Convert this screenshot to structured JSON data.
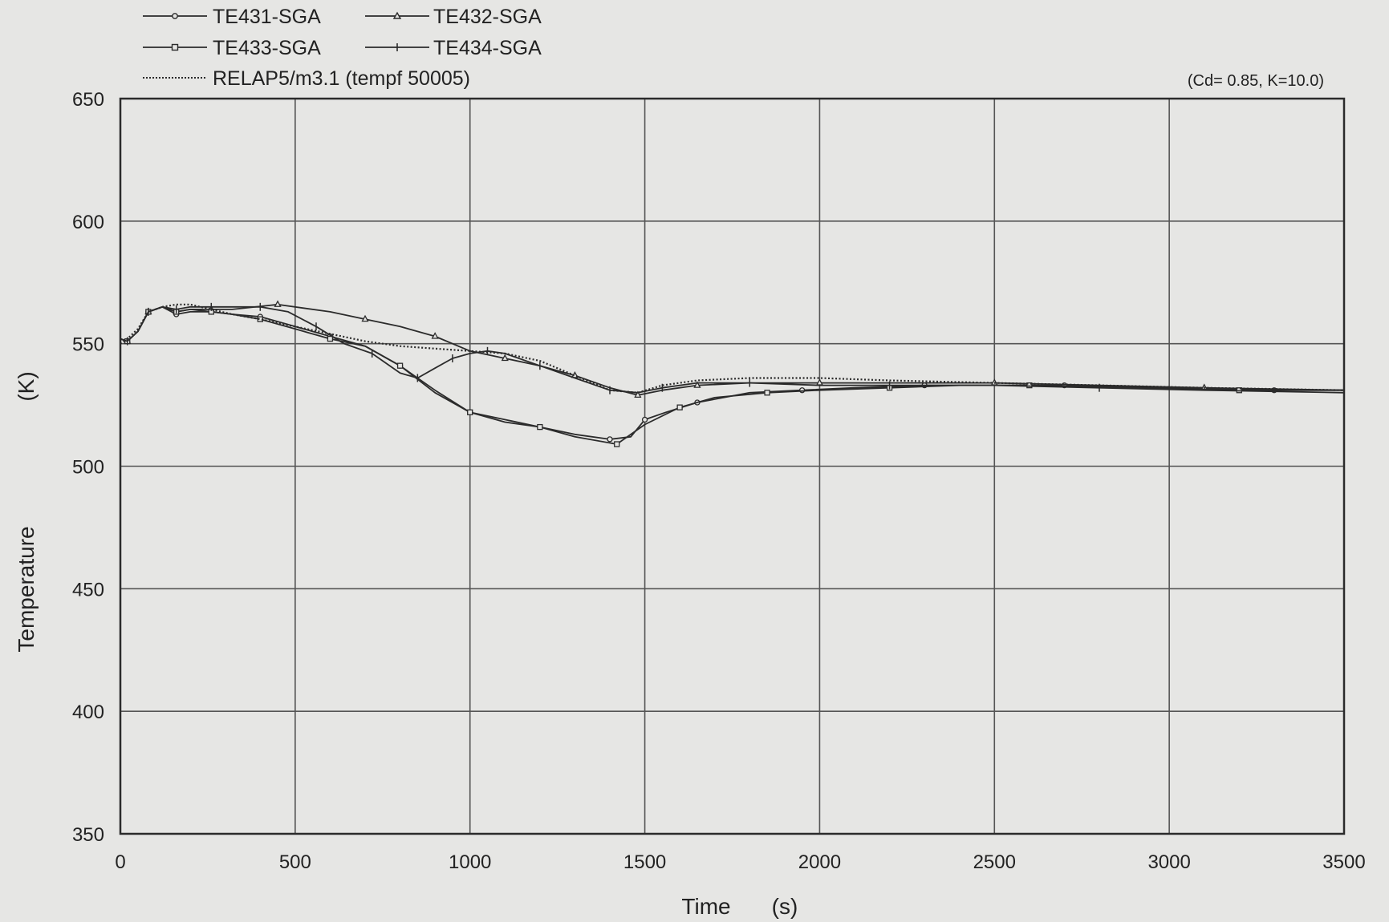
{
  "chart_data": {
    "type": "line",
    "annotation": "(Cd= 0.85, K=10.0)",
    "xlabel": "Time",
    "xlabel_unit": "(s)",
    "ylabel": "Temperature",
    "ylabel_unit": "(K)",
    "xlim": [
      0,
      3500
    ],
    "ylim": [
      350,
      650
    ],
    "x_ticks": [
      "0",
      "500",
      "1000",
      "1500",
      "2000",
      "2500",
      "3000",
      "3500"
    ],
    "y_ticks": [
      "650",
      "600",
      "550",
      "500",
      "450",
      "400",
      "350"
    ],
    "grid": true,
    "legend_position": "top-left, above plot",
    "colors": {
      "line": "#2b2b2b",
      "grid": "#555555",
      "background": "#e6e6e4"
    },
    "series": [
      {
        "name": "TE431-SGA",
        "marker": "circle",
        "dash": "solid",
        "x": [
          0,
          20,
          50,
          80,
          120,
          160,
          200,
          260,
          320,
          400,
          500,
          600,
          700,
          800,
          900,
          1000,
          1100,
          1200,
          1300,
          1400,
          1460,
          1500,
          1560,
          1650,
          1800,
          1950,
          2100,
          2300,
          2500,
          2700,
          3000,
          3300,
          3500
        ],
        "y": [
          552,
          551,
          555,
          563,
          565,
          562,
          563,
          563,
          562,
          561,
          557,
          553,
          549,
          541,
          531,
          522,
          519,
          516,
          513,
          511,
          512,
          519,
          522,
          526,
          530,
          531,
          532,
          533,
          533,
          533,
          532,
          531,
          531
        ]
      },
      {
        "name": "TE432-SGA",
        "marker": "triangle",
        "dash": "solid",
        "x": [
          0,
          20,
          50,
          80,
          120,
          160,
          200,
          260,
          320,
          450,
          600,
          700,
          800,
          900,
          1000,
          1100,
          1200,
          1300,
          1400,
          1480,
          1550,
          1650,
          1800,
          2000,
          2200,
          2500,
          2800,
          3100,
          3500
        ],
        "y": [
          552,
          551,
          555,
          563,
          565,
          563,
          564,
          564,
          564,
          566,
          563,
          560,
          557,
          553,
          547,
          544,
          541,
          537,
          532,
          529,
          531,
          533,
          534,
          534,
          534,
          534,
          533,
          532,
          531
        ]
      },
      {
        "name": "TE433-SGA",
        "marker": "square",
        "dash": "solid",
        "x": [
          0,
          20,
          50,
          80,
          120,
          160,
          200,
          260,
          320,
          400,
          500,
          600,
          700,
          800,
          900,
          1000,
          1100,
          1200,
          1300,
          1420,
          1500,
          1600,
          1700,
          1850,
          2000,
          2200,
          2400,
          2600,
          2900,
          3200,
          3500
        ],
        "y": [
          552,
          551,
          555,
          563,
          565,
          563,
          564,
          563,
          562,
          560,
          556,
          552,
          549,
          541,
          530,
          522,
          518,
          516,
          512,
          509,
          517,
          524,
          528,
          530,
          531,
          532,
          533,
          533,
          532,
          531,
          531
        ]
      },
      {
        "name": "TE434-SGA",
        "marker": "tick",
        "dash": "solid",
        "x": [
          0,
          20,
          50,
          80,
          120,
          160,
          200,
          260,
          320,
          400,
          480,
          560,
          640,
          720,
          800,
          850,
          900,
          950,
          1000,
          1050,
          1100,
          1200,
          1300,
          1400,
          1480,
          1550,
          1650,
          1800,
          2000,
          2200,
          2500,
          2800,
          3100,
          3500
        ],
        "y": [
          552,
          551,
          555,
          563,
          565,
          564,
          565,
          565,
          565,
          565,
          563,
          557,
          550,
          546,
          538,
          536,
          540,
          544,
          546,
          547,
          546,
          541,
          536,
          531,
          530,
          532,
          534,
          534,
          533,
          533,
          533,
          532,
          531,
          530
        ]
      },
      {
        "name": "RELAP5/m3.1 (tempf 50005)",
        "marker": "none",
        "dash": "dotted",
        "x": [
          0,
          20,
          50,
          80,
          120,
          160,
          200,
          260,
          320,
          400,
          500,
          600,
          700,
          800,
          900,
          1000,
          1100,
          1200,
          1300,
          1400,
          1480,
          1550,
          1650,
          1800,
          2000,
          2200,
          2500,
          2800,
          3100,
          3500
        ],
        "y": [
          550,
          552,
          556,
          563,
          565,
          566,
          566,
          564,
          562,
          560,
          557,
          554,
          551,
          549,
          548,
          547,
          546,
          543,
          537,
          531,
          530,
          533,
          535,
          536,
          536,
          535,
          534,
          533,
          532,
          531
        ]
      }
    ]
  }
}
